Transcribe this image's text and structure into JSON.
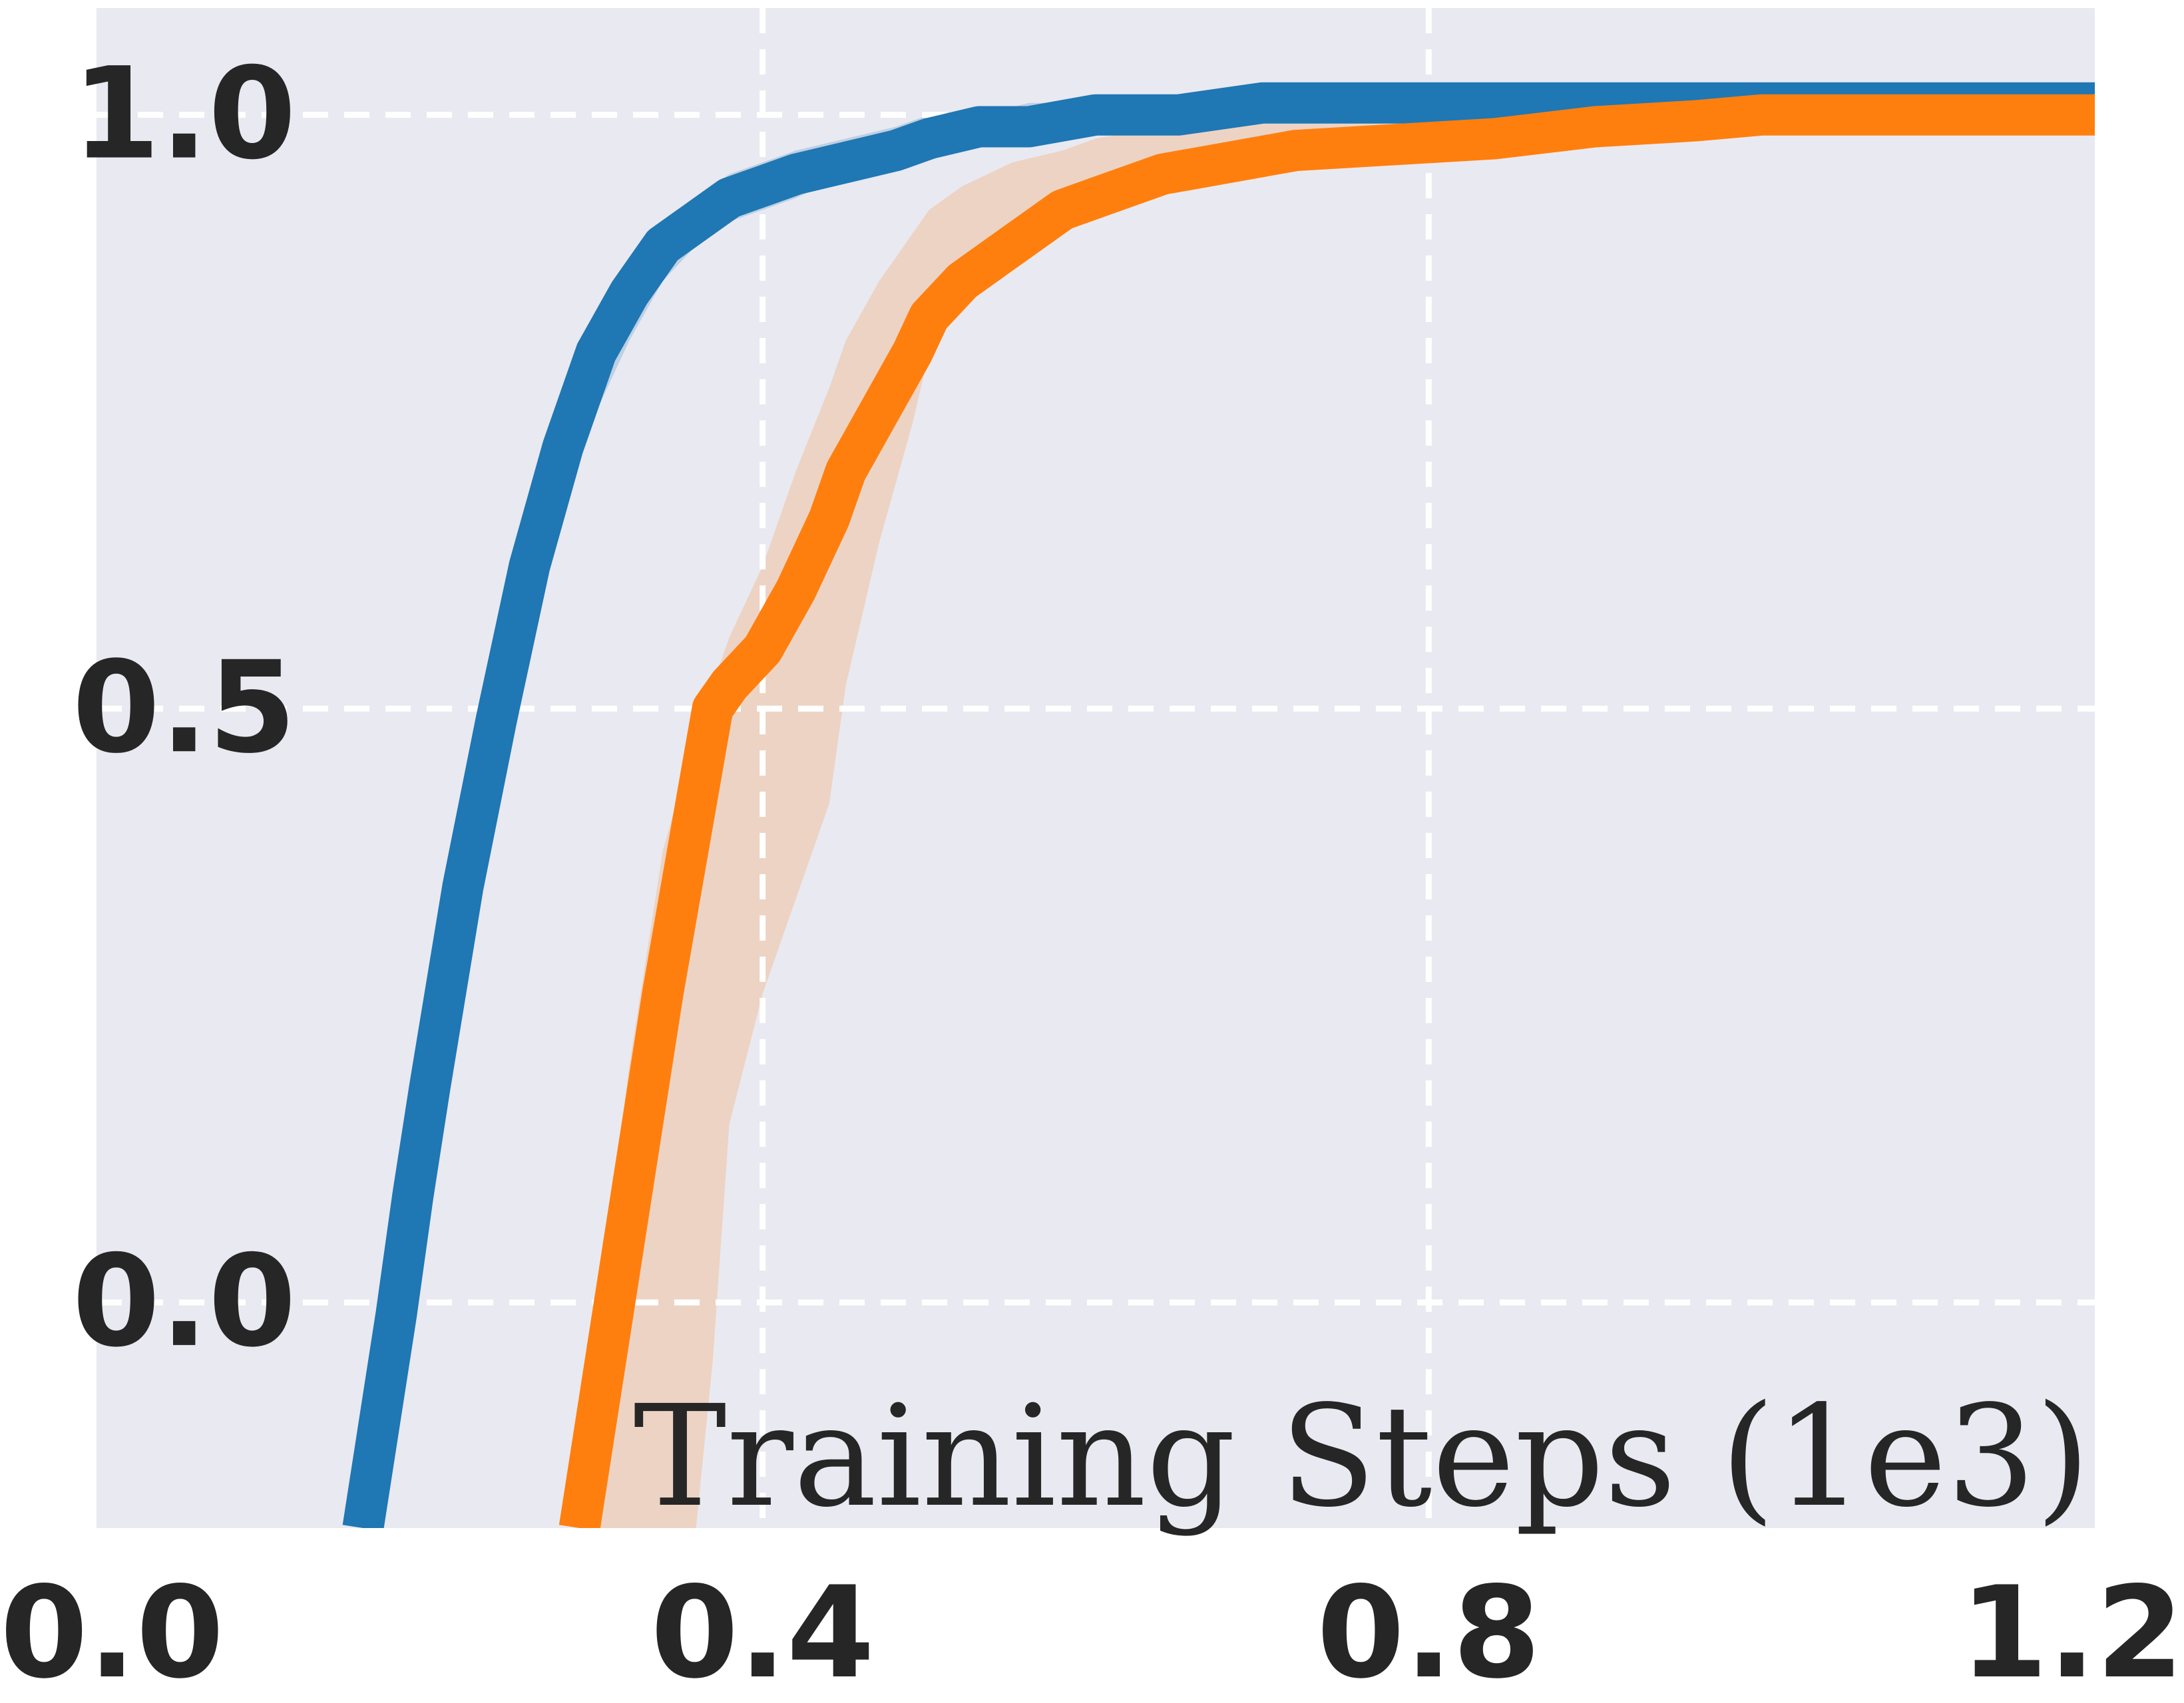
{
  "chart_data": {
    "type": "line",
    "title": "",
    "xlabel": "Training Steps (1e3)",
    "ylabel": "",
    "xlim": [
      0.0,
      1.2
    ],
    "ylim": [
      -0.19,
      1.09
    ],
    "xticks": [
      0.0,
      0.4,
      0.8,
      1.2
    ],
    "xtick_labels": [
      "0.0",
      "0.4",
      "0.8",
      "1.2"
    ],
    "yticks": [
      0.0,
      0.5,
      1.0
    ],
    "ytick_labels": [
      "0.0",
      "0.5",
      "1.0"
    ],
    "grid": true,
    "background_color": "#e9e9f1",
    "series": [
      {
        "color": "#1f77b4",
        "x": [
          0.16,
          0.17,
          0.18,
          0.19,
          0.2,
          0.22,
          0.24,
          0.26,
          0.28,
          0.3,
          0.32,
          0.34,
          0.36,
          0.38,
          0.4,
          0.42,
          0.45,
          0.48,
          0.5,
          0.53,
          0.56,
          0.6,
          0.65,
          0.7,
          0.8,
          0.9,
          1.0,
          1.1,
          1.2
        ],
        "y": [
          -0.19,
          -0.1,
          -0.01,
          0.09,
          0.18,
          0.35,
          0.49,
          0.62,
          0.72,
          0.8,
          0.85,
          0.89,
          0.91,
          0.93,
          0.94,
          0.95,
          0.96,
          0.97,
          0.98,
          0.99,
          0.99,
          1.0,
          1.0,
          1.01,
          1.01,
          1.01,
          1.01,
          1.01,
          1.01
        ],
        "upper": [
          -0.19,
          -0.06,
          0.04,
          0.14,
          0.24,
          0.41,
          0.55,
          0.67,
          0.76,
          0.83,
          0.88,
          0.91,
          0.93,
          0.95,
          0.96,
          0.97,
          0.98,
          0.99,
          1.0,
          1.0,
          1.01,
          1.01,
          1.01,
          1.01,
          1.01,
          1.01,
          1.01,
          1.01,
          1.01
        ],
        "lower": [
          -0.19,
          -0.15,
          -0.06,
          0.03,
          0.12,
          0.28,
          0.43,
          0.56,
          0.67,
          0.75,
          0.81,
          0.86,
          0.89,
          0.91,
          0.92,
          0.93,
          0.95,
          0.96,
          0.97,
          0.98,
          0.98,
          0.99,
          1.0,
          1.0,
          1.01,
          1.01,
          1.01,
          1.01,
          1.01
        ]
      },
      {
        "color": "#ff7f0e",
        "x": [
          0.29,
          0.3,
          0.32,
          0.34,
          0.36,
          0.37,
          0.38,
          0.4,
          0.42,
          0.44,
          0.45,
          0.47,
          0.49,
          0.5,
          0.52,
          0.55,
          0.58,
          0.6,
          0.64,
          0.68,
          0.72,
          0.78,
          0.84,
          0.9,
          0.96,
          1.0,
          1.1,
          1.2
        ],
        "y": [
          -0.19,
          -0.1,
          0.08,
          0.26,
          0.42,
          0.5,
          0.52,
          0.55,
          0.6,
          0.66,
          0.7,
          0.75,
          0.8,
          0.83,
          0.86,
          0.89,
          0.92,
          0.93,
          0.95,
          0.96,
          0.97,
          0.975,
          0.98,
          0.99,
          0.995,
          1.0,
          1.0,
          1.0
        ],
        "upper": [
          -0.19,
          -0.02,
          0.2,
          0.38,
          0.48,
          0.52,
          0.56,
          0.62,
          0.7,
          0.77,
          0.81,
          0.86,
          0.9,
          0.92,
          0.94,
          0.96,
          0.97,
          0.98,
          0.99,
          0.99,
          1.0,
          1.0,
          1.0,
          1.0,
          1.0,
          1.0,
          1.0,
          1.0
        ],
        "lower": [
          -0.19,
          -0.19,
          -0.19,
          -0.19,
          -0.19,
          -0.05,
          0.15,
          0.26,
          0.34,
          0.42,
          0.52,
          0.64,
          0.74,
          0.8,
          0.85,
          0.88,
          0.91,
          0.92,
          0.94,
          0.95,
          0.96,
          0.97,
          0.97,
          0.98,
          0.99,
          0.99,
          1.0,
          1.0
        ]
      }
    ]
  }
}
